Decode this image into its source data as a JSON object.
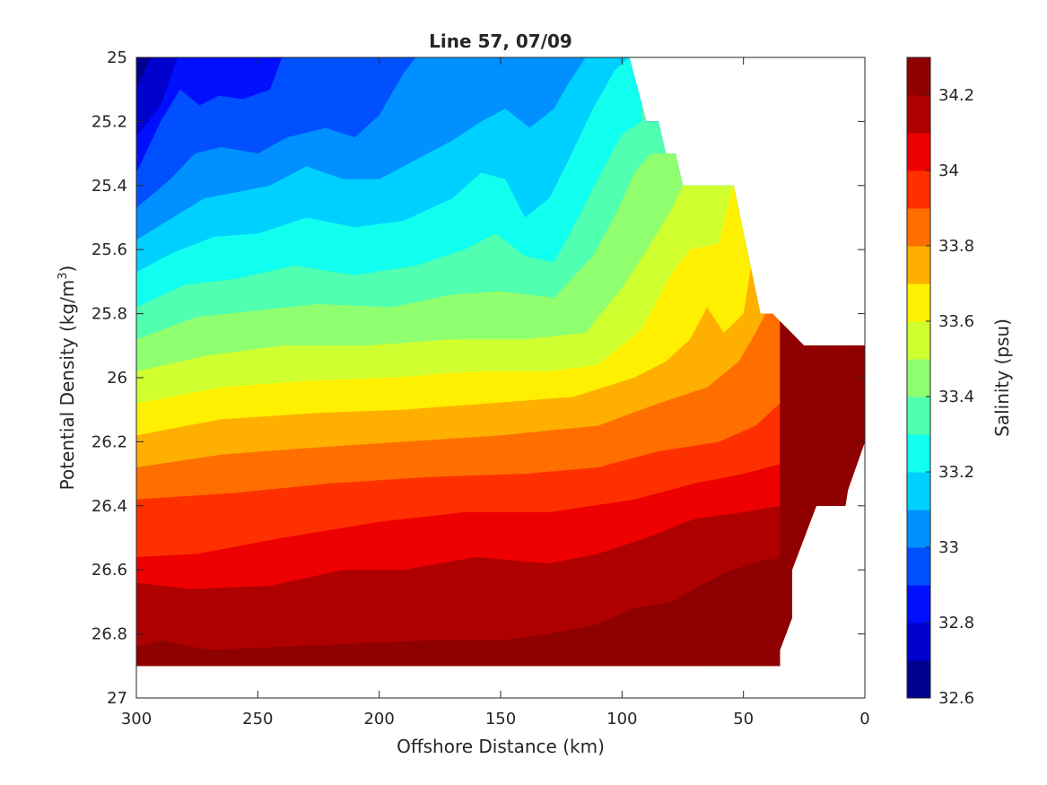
{
  "chart_data": {
    "type": "contourf",
    "title": "Line 57, 07/09",
    "xlabel": "Offshore Distance (km)",
    "ylabel_main": "Potential Density (kg/m",
    "ylabel_sup": "3",
    "ylabel_end": ")",
    "xlim": [
      300,
      0
    ],
    "ylim": [
      25,
      27
    ],
    "y_reversed": true,
    "x_ticks": [
      300,
      250,
      200,
      150,
      100,
      50,
      0
    ],
    "x_tick_labels": [
      "300",
      "250",
      "200",
      "150",
      "100",
      "50",
      "0"
    ],
    "y_ticks": [
      25,
      25.2,
      25.4,
      25.6,
      25.8,
      26,
      26.2,
      26.4,
      26.6,
      26.8,
      27
    ],
    "y_tick_labels": [
      "25",
      "25.2",
      "25.4",
      "25.6",
      "25.8",
      "26",
      "26.2",
      "26.4",
      "26.6",
      "26.8",
      "27"
    ],
    "colorbar": {
      "label": "Salinity (psu)",
      "range": [
        32.6,
        34.3
      ],
      "ticks": [
        32.6,
        32.8,
        33.0,
        33.2,
        33.4,
        33.6,
        33.8,
        34.0,
        34.2
      ],
      "tick_labels": [
        "32.6",
        "32.8",
        "33",
        "33.2",
        "33.4",
        "33.6",
        "33.8",
        "34",
        "34.2"
      ],
      "levels": [
        32.6,
        32.7,
        32.8,
        32.9,
        33.0,
        33.1,
        33.2,
        33.3,
        33.4,
        33.5,
        33.6,
        33.7,
        33.8,
        33.9,
        34.0,
        34.1,
        34.2,
        34.3
      ],
      "colors": [
        "#00008f",
        "#0000cf",
        "#0010ff",
        "#0050ff",
        "#0090ff",
        "#00d0ff",
        "#10ffef",
        "#50ffaf",
        "#90ff6f",
        "#d0ff2f",
        "#ffef00",
        "#ffaf00",
        "#ff6f00",
        "#ff3000",
        "#ef0000",
        "#af0000",
        "#8f0000"
      ]
    },
    "data_boundary": [
      [
        300,
        25.0
      ],
      [
        97,
        25.0
      ],
      [
        90,
        25.2
      ],
      [
        85,
        25.2
      ],
      [
        82,
        25.3
      ],
      [
        78,
        25.3
      ],
      [
        75,
        25.4
      ],
      [
        54,
        25.4
      ],
      [
        43,
        25.8
      ],
      [
        38,
        25.8
      ],
      [
        25,
        25.9
      ],
      [
        0,
        25.9
      ],
      [
        0,
        26.2
      ],
      [
        7,
        26.35
      ],
      [
        8,
        26.4
      ],
      [
        20,
        26.4
      ],
      [
        30,
        26.6
      ],
      [
        30,
        26.75
      ],
      [
        35,
        26.85
      ],
      [
        35,
        26.9
      ],
      [
        300,
        26.9
      ]
    ],
    "contours": [
      {
        "level": 32.7,
        "points": [
          [
            300,
            25.1
          ],
          [
            294,
            25.0
          ]
        ]
      },
      {
        "level": 32.8,
        "points": [
          [
            300,
            25.25
          ],
          [
            290,
            25.15
          ],
          [
            283,
            25.0
          ]
        ]
      },
      {
        "level": 32.9,
        "points": [
          [
            300,
            25.36
          ],
          [
            290,
            25.2
          ],
          [
            282,
            25.1
          ],
          [
            274,
            25.15
          ],
          [
            266,
            25.12
          ],
          [
            256,
            25.13
          ],
          [
            245,
            25.1
          ],
          [
            240,
            25.0
          ]
        ]
      },
      {
        "level": 33.0,
        "points": [
          [
            300,
            25.47
          ],
          [
            286,
            25.38
          ],
          [
            276,
            25.3
          ],
          [
            265,
            25.28
          ],
          [
            250,
            25.3
          ],
          [
            238,
            25.25
          ],
          [
            222,
            25.22
          ],
          [
            210,
            25.25
          ],
          [
            200,
            25.18
          ],
          [
            190,
            25.05
          ],
          [
            185,
            25.0
          ]
        ]
      },
      {
        "level": 33.1,
        "points": [
          [
            300,
            25.57
          ],
          [
            285,
            25.5
          ],
          [
            272,
            25.44
          ],
          [
            258,
            25.42
          ],
          [
            245,
            25.4
          ],
          [
            230,
            25.34
          ],
          [
            215,
            25.38
          ],
          [
            200,
            25.38
          ],
          [
            185,
            25.32
          ],
          [
            170,
            25.26
          ],
          [
            158,
            25.2
          ],
          [
            148,
            25.16
          ],
          [
            138,
            25.22
          ],
          [
            128,
            25.16
          ],
          [
            122,
            25.08
          ],
          [
            115,
            25.0
          ]
        ]
      },
      {
        "level": 33.2,
        "points": [
          [
            300,
            25.67
          ],
          [
            285,
            25.61
          ],
          [
            268,
            25.56
          ],
          [
            250,
            25.55
          ],
          [
            230,
            25.5
          ],
          [
            210,
            25.53
          ],
          [
            190,
            25.51
          ],
          [
            170,
            25.44
          ],
          [
            158,
            25.36
          ],
          [
            148,
            25.38
          ],
          [
            140,
            25.5
          ],
          [
            130,
            25.44
          ],
          [
            122,
            25.32
          ],
          [
            112,
            25.16
          ],
          [
            103,
            25.04
          ],
          [
            97,
            25.0
          ]
        ]
      },
      {
        "level": 33.3,
        "points": [
          [
            300,
            25.78
          ],
          [
            280,
            25.71
          ],
          [
            258,
            25.69
          ],
          [
            235,
            25.65
          ],
          [
            210,
            25.68
          ],
          [
            185,
            25.65
          ],
          [
            165,
            25.6
          ],
          [
            152,
            25.55
          ],
          [
            140,
            25.62
          ],
          [
            128,
            25.64
          ],
          [
            118,
            25.5
          ],
          [
            108,
            25.35
          ],
          [
            100,
            25.24
          ],
          [
            92,
            25.2
          ]
        ]
      },
      {
        "level": 33.4,
        "points": [
          [
            300,
            25.88
          ],
          [
            275,
            25.81
          ],
          [
            250,
            25.79
          ],
          [
            225,
            25.77
          ],
          [
            195,
            25.78
          ],
          [
            170,
            25.74
          ],
          [
            150,
            25.73
          ],
          [
            128,
            25.75
          ],
          [
            112,
            25.62
          ],
          [
            102,
            25.48
          ],
          [
            95,
            25.36
          ],
          [
            88,
            25.3
          ],
          [
            82,
            25.3
          ]
        ]
      },
      {
        "level": 33.5,
        "points": [
          [
            300,
            25.98
          ],
          [
            270,
            25.93
          ],
          [
            240,
            25.9
          ],
          [
            205,
            25.9
          ],
          [
            170,
            25.88
          ],
          [
            140,
            25.88
          ],
          [
            115,
            25.86
          ],
          [
            100,
            25.72
          ],
          [
            88,
            25.58
          ],
          [
            80,
            25.48
          ],
          [
            75,
            25.4
          ]
        ]
      },
      {
        "level": 33.6,
        "points": [
          [
            300,
            26.08
          ],
          [
            265,
            26.03
          ],
          [
            230,
            26.01
          ],
          [
            195,
            26.0
          ],
          [
            160,
            25.98
          ],
          [
            130,
            25.98
          ],
          [
            110,
            25.96
          ],
          [
            92,
            25.85
          ],
          [
            80,
            25.68
          ],
          [
            72,
            25.6
          ],
          [
            60,
            25.58
          ],
          [
            55,
            25.42
          ]
        ]
      },
      {
        "level": 33.7,
        "points": [
          [
            300,
            26.18
          ],
          [
            265,
            26.13
          ],
          [
            225,
            26.11
          ],
          [
            190,
            26.1
          ],
          [
            155,
            26.08
          ],
          [
            120,
            26.06
          ],
          [
            95,
            26.0
          ],
          [
            82,
            25.95
          ],
          [
            72,
            25.88
          ],
          [
            65,
            25.78
          ],
          [
            58,
            25.86
          ],
          [
            50,
            25.8
          ],
          [
            47,
            25.66
          ]
        ]
      },
      {
        "level": 33.8,
        "points": [
          [
            300,
            26.28
          ],
          [
            265,
            26.24
          ],
          [
            230,
            26.22
          ],
          [
            190,
            26.2
          ],
          [
            150,
            26.18
          ],
          [
            110,
            26.15
          ],
          [
            85,
            26.08
          ],
          [
            65,
            26.03
          ],
          [
            52,
            25.95
          ],
          [
            45,
            25.86
          ],
          [
            41,
            25.8
          ]
        ]
      },
      {
        "level": 33.9,
        "points": [
          [
            300,
            26.38
          ],
          [
            260,
            26.36
          ],
          [
            220,
            26.33
          ],
          [
            180,
            26.31
          ],
          [
            140,
            26.3
          ],
          [
            110,
            26.28
          ],
          [
            85,
            26.23
          ],
          [
            60,
            26.2
          ],
          [
            45,
            26.15
          ],
          [
            35,
            26.08
          ],
          [
            28,
            25.95
          ],
          [
            24,
            25.9
          ]
        ]
      },
      {
        "level": 34.0,
        "points": [
          [
            300,
            26.56
          ],
          [
            275,
            26.55
          ],
          [
            240,
            26.5
          ],
          [
            200,
            26.45
          ],
          [
            165,
            26.42
          ],
          [
            130,
            26.42
          ],
          [
            95,
            26.38
          ],
          [
            70,
            26.33
          ],
          [
            50,
            26.3
          ],
          [
            35,
            26.27
          ],
          [
            20,
            26.18
          ],
          [
            12,
            26.07
          ],
          [
            9,
            25.9
          ]
        ]
      },
      {
        "level": 34.1,
        "points": [
          [
            300,
            26.64
          ],
          [
            278,
            26.66
          ],
          [
            245,
            26.65
          ],
          [
            215,
            26.6
          ],
          [
            190,
            26.6
          ],
          [
            160,
            26.56
          ],
          [
            130,
            26.58
          ],
          [
            110,
            26.55
          ],
          [
            90,
            26.5
          ],
          [
            70,
            26.44
          ],
          [
            50,
            26.42
          ],
          [
            35,
            26.4
          ],
          [
            20,
            26.37
          ],
          [
            7,
            26.35
          ]
        ]
      },
      {
        "level": 34.2,
        "points": [
          [
            300,
            26.84
          ],
          [
            290,
            26.82
          ],
          [
            270,
            26.85
          ],
          [
            240,
            26.84
          ],
          [
            210,
            26.83
          ],
          [
            180,
            26.82
          ],
          [
            150,
            26.82
          ],
          [
            130,
            26.8
          ],
          [
            110,
            26.77
          ],
          [
            95,
            26.72
          ],
          [
            80,
            26.7
          ],
          [
            68,
            26.65
          ],
          [
            55,
            26.6
          ],
          [
            42,
            26.57
          ],
          [
            30,
            26.56
          ]
        ]
      },
      {
        "level": 34.3,
        "points": [
          [
            68,
            26.9
          ],
          [
            62,
            26.86
          ],
          [
            52,
            26.85
          ],
          [
            35,
            26.85
          ]
        ]
      }
    ]
  }
}
